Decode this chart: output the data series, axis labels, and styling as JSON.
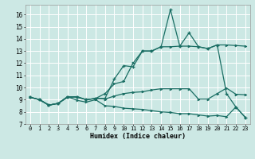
{
  "xlabel": "Humidex (Indice chaleur)",
  "background_color": "#cce8e4",
  "grid_color": "#ffffff",
  "line_color": "#1a6e64",
  "xlim": [
    -0.5,
    23.5
  ],
  "ylim": [
    7,
    16.8
  ],
  "xticks": [
    0,
    1,
    2,
    3,
    4,
    5,
    6,
    7,
    8,
    9,
    10,
    11,
    12,
    13,
    14,
    15,
    16,
    17,
    18,
    19,
    20,
    21,
    22,
    23
  ],
  "yticks": [
    7,
    8,
    9,
    10,
    11,
    12,
    13,
    14,
    15,
    16
  ],
  "line1_x": [
    0,
    1,
    2,
    3,
    4,
    5,
    6,
    7,
    8,
    9,
    10,
    11,
    12,
    13,
    14,
    15,
    16,
    17,
    18,
    19,
    20,
    21,
    22,
    23
  ],
  "line1_y": [
    9.2,
    9.0,
    8.55,
    8.7,
    9.25,
    8.95,
    8.8,
    9.0,
    8.5,
    8.45,
    8.3,
    8.25,
    8.2,
    8.1,
    8.0,
    7.95,
    7.85,
    7.85,
    7.75,
    7.65,
    7.7,
    7.6,
    8.4,
    7.55
  ],
  "line2_x": [
    0,
    1,
    2,
    3,
    4,
    5,
    6,
    7,
    8,
    9,
    10,
    11,
    12,
    13,
    14,
    15,
    16,
    17,
    18,
    19,
    20,
    21,
    22,
    23
  ],
  "line2_y": [
    9.2,
    9.0,
    8.55,
    8.7,
    9.25,
    9.2,
    9.0,
    9.1,
    9.05,
    9.3,
    9.5,
    9.6,
    9.65,
    9.8,
    9.9,
    9.9,
    9.9,
    9.9,
    9.05,
    9.05,
    9.5,
    9.95,
    9.45,
    9.4
  ],
  "line3_x": [
    0,
    1,
    2,
    3,
    4,
    5,
    6,
    7,
    8,
    9,
    10,
    11,
    12,
    13,
    14,
    15,
    16,
    17,
    18,
    19,
    20,
    21,
    22,
    23
  ],
  "line3_y": [
    9.2,
    9.0,
    8.55,
    8.7,
    9.2,
    9.25,
    9.0,
    9.1,
    9.1,
    10.7,
    11.8,
    11.7,
    13.0,
    13.0,
    13.35,
    16.4,
    13.4,
    14.5,
    13.35,
    13.2,
    13.5,
    9.5,
    8.4,
    7.55
  ],
  "line4_x": [
    0,
    1,
    2,
    3,
    4,
    5,
    6,
    7,
    8,
    9,
    10,
    11,
    12,
    13,
    14,
    15,
    16,
    17,
    18,
    19,
    20,
    21,
    22,
    23
  ],
  "line4_y": [
    9.2,
    9.0,
    8.55,
    8.7,
    9.2,
    9.25,
    9.0,
    9.1,
    9.5,
    10.3,
    10.5,
    12.0,
    13.0,
    13.0,
    13.35,
    13.35,
    13.4,
    13.4,
    13.35,
    13.2,
    13.5,
    13.5,
    13.45,
    13.4
  ]
}
